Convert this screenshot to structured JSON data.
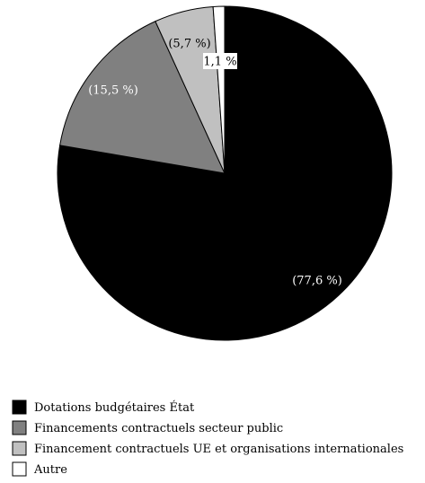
{
  "chart_data": {
    "type": "pie",
    "title": "",
    "slices": [
      {
        "name": "Dotations budgétaires État",
        "value": 77.6,
        "label": "(77,6 %)",
        "color": "#000000",
        "label_color": "#ffffff"
      },
      {
        "name": "Financements contractuels secteur public",
        "value": 15.5,
        "label": "(15,5 %)",
        "color": "#808080",
        "label_color": "#ffffff"
      },
      {
        "name": "Financement contractuels UE et organisations internationales",
        "value": 5.7,
        "label": "(5,7 %)",
        "color": "#c0c0c0",
        "label_color": "#000000"
      },
      {
        "name": "Autre",
        "value": 1.1,
        "label": "1,1 %",
        "color": "#ffffff",
        "label_color": "#000000"
      }
    ],
    "start_angle": "12 o'clock",
    "direction": "clockwise",
    "legend": "bottom-left"
  }
}
